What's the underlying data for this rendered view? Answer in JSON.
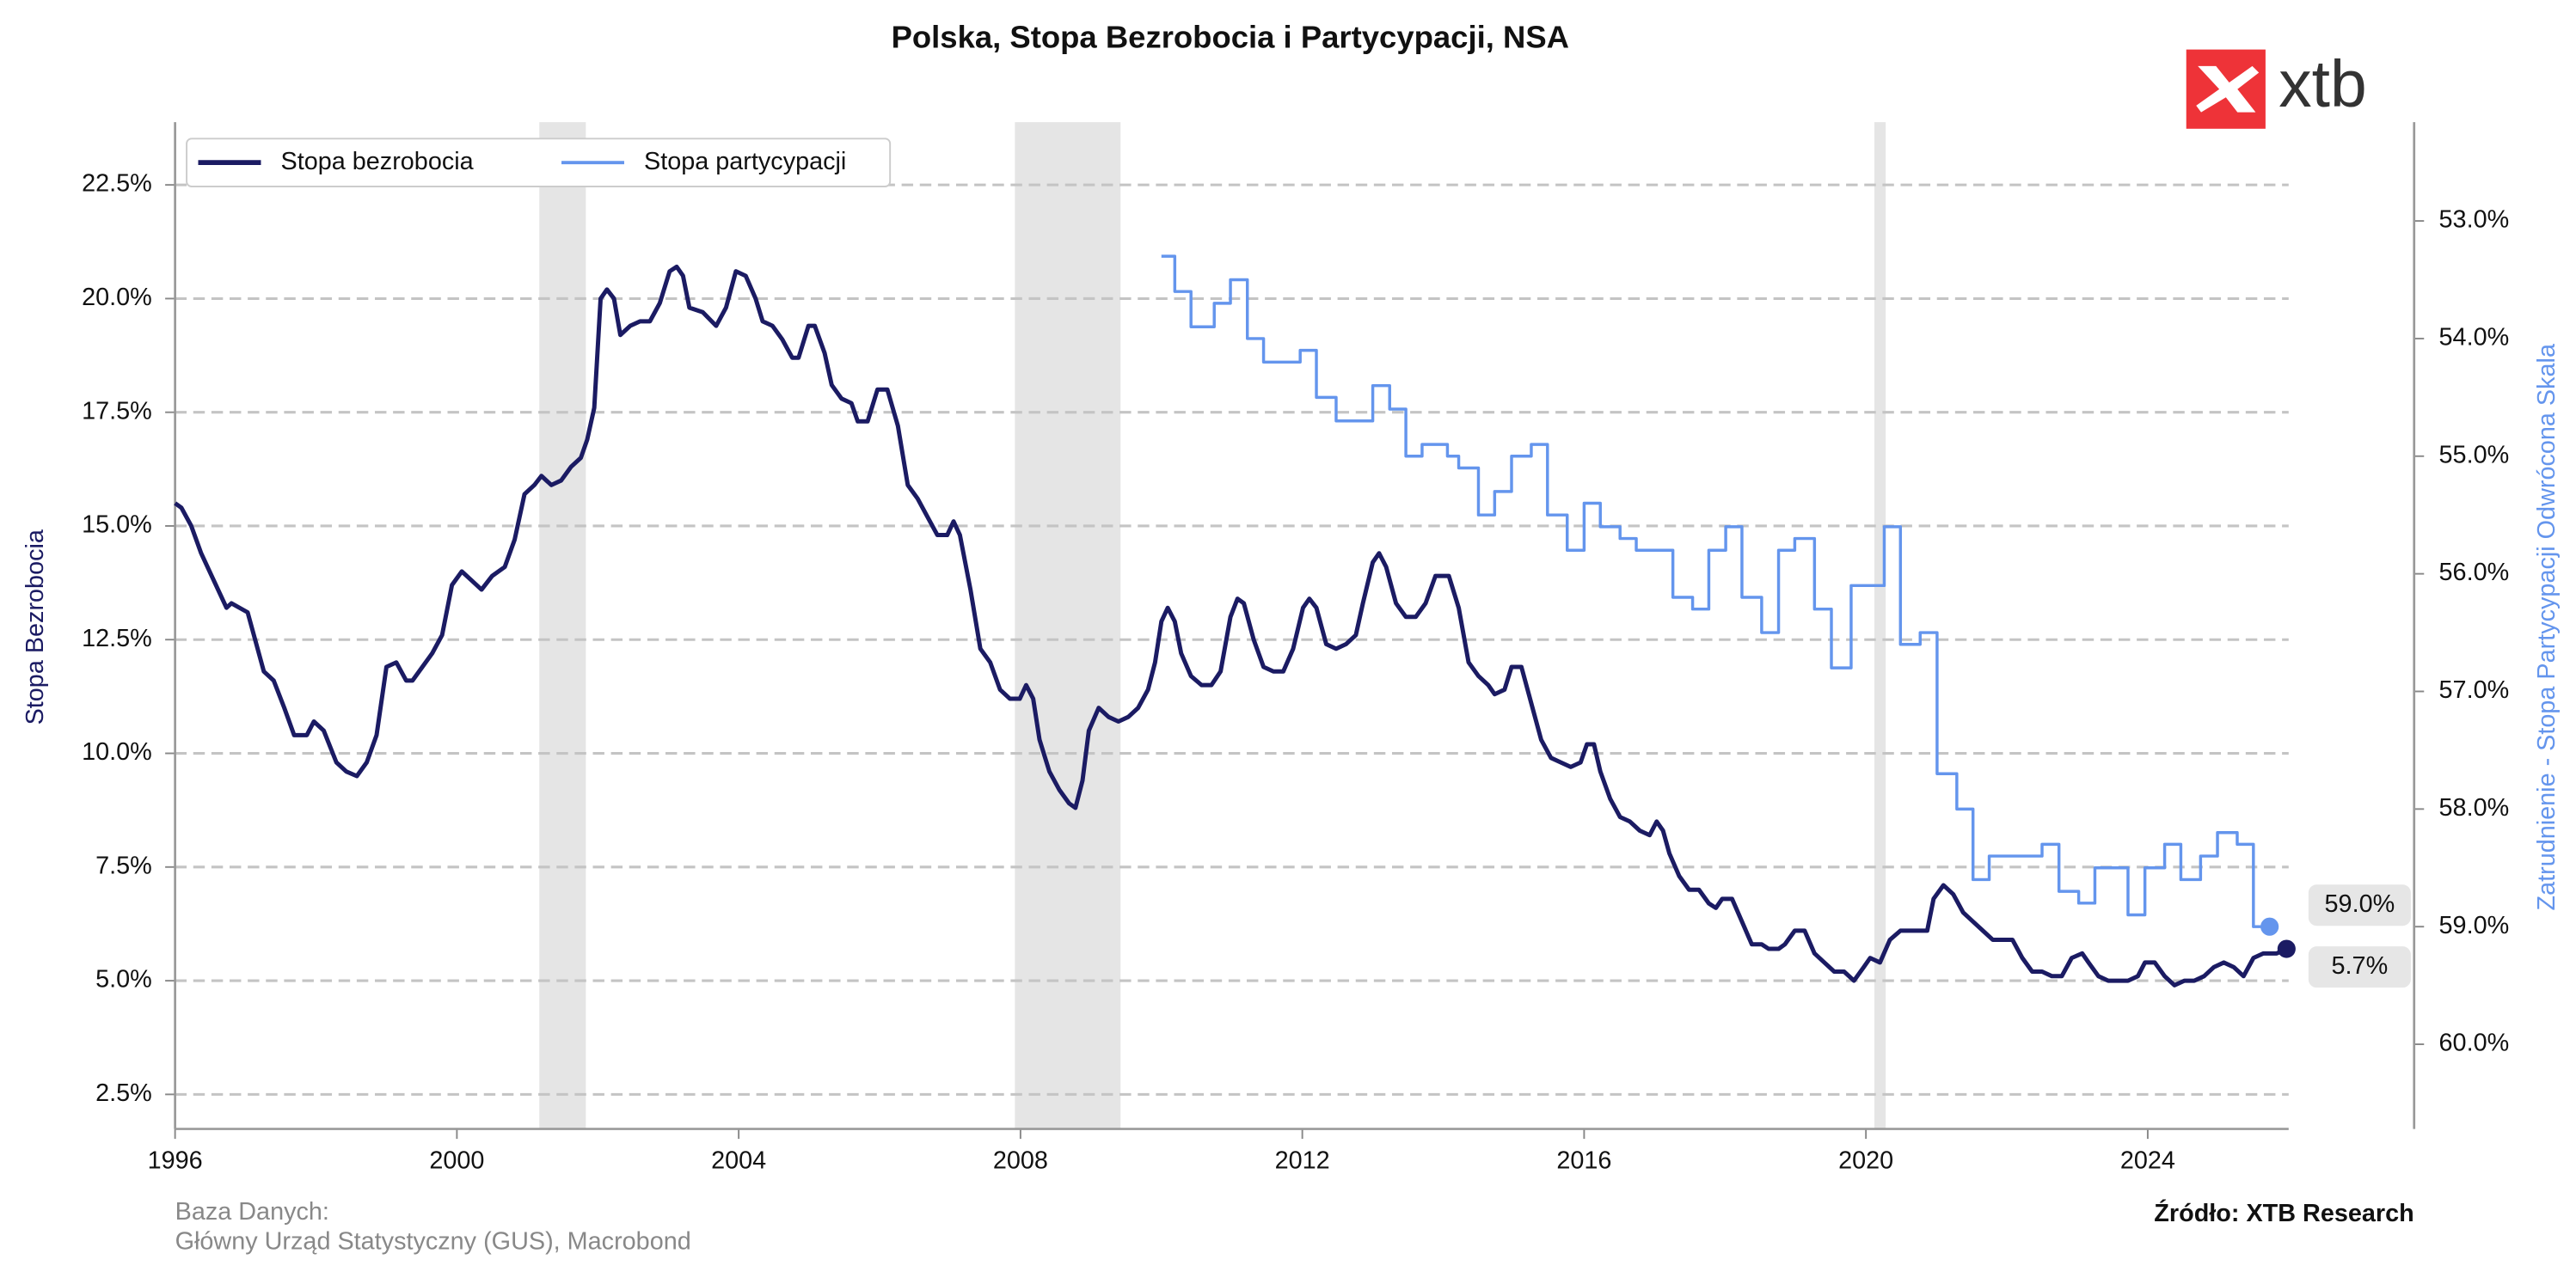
{
  "chart_data": {
    "type": "line",
    "title": "Polska, Stopa Bezrobocia i Partycypacji, NSA",
    "ylabel": "Stopa Bezrobocia",
    "y2label": "Zatrudnienie - Stopa Partycypacji Odwrócona Skala",
    "note_title": "Baza Danych:",
    "note_text": "Główny Urząd Statystyczny (GUS), Macrobond",
    "source": "Źródło: XTB Research",
    "logo": "xtb",
    "xlim": [
      1996,
      2026
    ],
    "xticks": [
      1996,
      2000,
      2004,
      2008,
      2012,
      2016,
      2020,
      2024
    ],
    "ylim": [
      1.74,
      23.88
    ],
    "yticks": [
      {
        "value": 2.5,
        "label": "2.5%"
      },
      {
        "value": 5,
        "label": "5.0%"
      },
      {
        "value": 7.5,
        "label": "7.5%"
      },
      {
        "value": 10,
        "label": "10.0%"
      },
      {
        "value": 12.5,
        "label": "12.5%"
      },
      {
        "value": 15,
        "label": "15.0%"
      },
      {
        "value": 17.5,
        "label": "17.5%"
      },
      {
        "value": 20,
        "label": "20.0%"
      },
      {
        "value": 22.5,
        "label": "22.5%"
      }
    ],
    "y2lim": [
      52.16,
      60.72
    ],
    "y2_inverted": true,
    "y2ticks": [
      {
        "value": 53,
        "label": "53.0%"
      },
      {
        "value": 54,
        "label": "54.0%"
      },
      {
        "value": 55,
        "label": "55.0%"
      },
      {
        "value": 56,
        "label": "56.0%"
      },
      {
        "value": 57,
        "label": "57.0%"
      },
      {
        "value": 58,
        "label": "58.0%"
      },
      {
        "value": 59,
        "label": "59.0%"
      },
      {
        "value": 60,
        "label": "60.0%"
      }
    ],
    "grid": true,
    "legend": "upper left",
    "shaded_regions": [
      [
        2001.17,
        2001.83
      ],
      [
        2007.92,
        2009.42
      ],
      [
        2020.12,
        2020.28
      ]
    ],
    "series": [
      {
        "name": "Stopa bezrobocia",
        "color": "#1b1b63",
        "axis": "y",
        "end_label": "5.7%",
        "x": [
          1996.0,
          1996.09,
          1996.23,
          1996.37,
          1996.52,
          1996.73,
          1996.8,
          1997.03,
          1997.26,
          1997.4,
          1997.55,
          1997.69,
          1997.87,
          1997.97,
          1998.11,
          1998.29,
          1998.43,
          1998.58,
          1998.72,
          1998.86,
          1999.0,
          1999.14,
          1999.28,
          1999.37,
          1999.51,
          1999.65,
          1999.79,
          1999.93,
          2000.07,
          2000.21,
          2000.35,
          2000.5,
          2000.68,
          2000.82,
          2000.96,
          2001.1,
          2001.2,
          2001.34,
          2001.48,
          2001.62,
          2001.76,
          2001.85,
          2001.95,
          2002.04,
          2002.13,
          2002.23,
          2002.32,
          2002.46,
          2002.6,
          2002.74,
          2002.88,
          2003.02,
          2003.12,
          2003.21,
          2003.3,
          2003.49,
          2003.68,
          2003.82,
          2003.96,
          2004.1,
          2004.24,
          2004.34,
          2004.48,
          2004.62,
          2004.76,
          2004.85,
          2004.99,
          2005.08,
          2005.22,
          2005.32,
          2005.46,
          2005.6,
          2005.69,
          2005.83,
          2005.97,
          2006.11,
          2006.26,
          2006.4,
          2006.54,
          2006.68,
          2006.82,
          2006.96,
          2007.05,
          2007.14,
          2007.29,
          2007.43,
          2007.57,
          2007.71,
          2007.85,
          2007.99,
          2008.08,
          2008.18,
          2008.27,
          2008.41,
          2008.55,
          2008.69,
          2008.78,
          2008.88,
          2008.97,
          2009.11,
          2009.25,
          2009.39,
          2009.53,
          2009.67,
          2009.81,
          2009.91,
          2010.0,
          2010.09,
          2010.19,
          2010.28,
          2010.42,
          2010.57,
          2010.71,
          2010.84,
          2010.98,
          2011.08,
          2011.17,
          2011.31,
          2011.45,
          2011.59,
          2011.73,
          2011.87,
          2012.01,
          2012.1,
          2012.2,
          2012.34,
          2012.48,
          2012.62,
          2012.76,
          2012.86,
          2013.0,
          2013.09,
          2013.19,
          2013.33,
          2013.47,
          2013.61,
          2013.75,
          2013.89,
          2014.08,
          2014.22,
          2014.36,
          2014.5,
          2014.64,
          2014.73,
          2014.87,
          2014.97,
          2015.11,
          2015.25,
          2015.39,
          2015.53,
          2015.67,
          2015.81,
          2015.95,
          2016.04,
          2016.14,
          2016.23,
          2016.37,
          2016.51,
          2016.65,
          2016.79,
          2016.93,
          2017.03,
          2017.12,
          2017.21,
          2017.35,
          2017.49,
          2017.63,
          2017.77,
          2017.87,
          2017.96,
          2018.1,
          2018.24,
          2018.38,
          2018.52,
          2018.62,
          2018.76,
          2018.85,
          2018.99,
          2019.13,
          2019.27,
          2019.41,
          2019.55,
          2019.69,
          2019.83,
          2019.97,
          2020.06,
          2020.2,
          2020.34,
          2020.49,
          2020.68,
          2020.87,
          2020.96,
          2021.1,
          2021.24,
          2021.38,
          2021.52,
          2021.66,
          2021.8,
          2021.94,
          2022.08,
          2022.22,
          2022.36,
          2022.5,
          2022.64,
          2022.78,
          2022.92,
          2023.07,
          2023.16,
          2023.3,
          2023.44,
          2023.58,
          2023.72,
          2023.86,
          2023.96,
          2024.1,
          2024.24,
          2024.38,
          2024.52,
          2024.66,
          2024.8,
          2024.94,
          2025.08,
          2025.22,
          2025.36,
          2025.5,
          2025.64,
          2025.83,
          2025.97
        ],
        "values": [
          15.5,
          15.4,
          15.0,
          14.4,
          13.9,
          13.2,
          13.3,
          13.1,
          11.8,
          11.6,
          11.0,
          10.4,
          10.4,
          10.7,
          10.5,
          9.8,
          9.6,
          9.5,
          9.8,
          10.4,
          11.9,
          12.0,
          11.6,
          11.6,
          11.9,
          12.2,
          12.6,
          13.7,
          14.0,
          13.8,
          13.6,
          13.9,
          14.1,
          14.7,
          15.7,
          15.9,
          16.1,
          15.9,
          16.0,
          16.3,
          16.5,
          16.9,
          17.6,
          20.0,
          20.2,
          20.0,
          19.2,
          19.4,
          19.5,
          19.5,
          19.9,
          20.6,
          20.7,
          20.5,
          19.8,
          19.7,
          19.4,
          19.8,
          20.6,
          20.5,
          20.0,
          19.5,
          19.4,
          19.1,
          18.7,
          18.7,
          19.4,
          19.4,
          18.8,
          18.1,
          17.8,
          17.7,
          17.3,
          17.3,
          18.0,
          18.0,
          17.2,
          15.9,
          15.6,
          15.2,
          14.8,
          14.8,
          15.1,
          14.8,
          13.6,
          12.3,
          12.0,
          11.4,
          11.2,
          11.2,
          11.5,
          11.2,
          10.3,
          9.6,
          9.2,
          8.9,
          8.8,
          9.4,
          10.5,
          11.0,
          10.8,
          10.7,
          10.8,
          11.0,
          11.4,
          12.0,
          12.9,
          13.2,
          12.9,
          12.2,
          11.7,
          11.5,
          11.5,
          11.8,
          13.0,
          13.4,
          13.3,
          12.5,
          11.9,
          11.8,
          11.8,
          12.3,
          13.2,
          13.4,
          13.2,
          12.4,
          12.3,
          12.4,
          12.6,
          13.3,
          14.2,
          14.4,
          14.1,
          13.3,
          13.0,
          13.0,
          13.3,
          13.9,
          13.9,
          13.2,
          12.0,
          11.7,
          11.5,
          11.3,
          11.4,
          11.9,
          11.9,
          11.1,
          10.3,
          9.9,
          9.8,
          9.7,
          9.8,
          10.2,
          10.2,
          9.6,
          9.0,
          8.6,
          8.5,
          8.3,
          8.2,
          8.5,
          8.3,
          7.8,
          7.3,
          7.0,
          7.0,
          6.7,
          6.6,
          6.8,
          6.8,
          6.3,
          5.8,
          5.8,
          5.7,
          5.7,
          5.8,
          6.1,
          6.1,
          5.6,
          5.4,
          5.2,
          5.2,
          5.0,
          5.3,
          5.5,
          5.4,
          5.9,
          6.1,
          6.1,
          6.1,
          6.8,
          7.1,
          6.9,
          6.5,
          6.3,
          6.1,
          5.9,
          5.9,
          5.9,
          5.5,
          5.2,
          5.2,
          5.1,
          5.1,
          5.5,
          5.6,
          5.4,
          5.1,
          5.0,
          5.0,
          5.0,
          5.1,
          5.4,
          5.4,
          5.1,
          4.9,
          5.0,
          5.0,
          5.1,
          5.3,
          5.4,
          5.3,
          5.1,
          5.5,
          5.6,
          5.6,
          5.7
        ]
      },
      {
        "name": "Stopa partycypacji",
        "color": "#6495ed",
        "axis": "y2",
        "drawstyle": "steps-post",
        "end_label": "59.0%",
        "x": [
          2010.0,
          2010.19,
          2010.42,
          2010.75,
          2010.98,
          2011.22,
          2011.45,
          2011.97,
          2012.2,
          2012.48,
          2013.0,
          2013.24,
          2013.47,
          2013.7,
          2014.06,
          2014.22,
          2014.5,
          2014.73,
          2014.97,
          2015.25,
          2015.48,
          2015.76,
          2016.0,
          2016.23,
          2016.51,
          2016.74,
          2017.26,
          2017.54,
          2017.77,
          2018.01,
          2018.24,
          2018.52,
          2018.76,
          2018.99,
          2019.27,
          2019.51,
          2019.79,
          2020.26,
          2020.49,
          2020.77,
          2021.01,
          2021.29,
          2021.52,
          2021.75,
          2022.5,
          2022.74,
          2023.02,
          2023.25,
          2023.72,
          2023.96,
          2024.24,
          2024.47,
          2024.75,
          2024.99,
          2025.27,
          2025.5,
          2025.73
        ],
        "values": [
          53.3,
          53.6,
          53.9,
          53.7,
          53.5,
          54.0,
          54.2,
          54.1,
          54.5,
          54.7,
          54.4,
          54.6,
          55.0,
          54.9,
          55.0,
          55.1,
          55.5,
          55.3,
          55.0,
          54.9,
          55.5,
          55.8,
          55.4,
          55.6,
          55.7,
          55.8,
          56.2,
          56.3,
          55.8,
          55.6,
          56.2,
          56.5,
          55.8,
          55.7,
          56.3,
          56.8,
          56.1,
          55.6,
          56.6,
          56.5,
          57.7,
          58.0,
          58.6,
          58.4,
          58.3,
          58.7,
          58.8,
          58.5,
          58.9,
          58.5,
          58.3,
          58.6,
          58.4,
          58.2,
          58.3,
          59.0,
          59.0
        ]
      }
    ]
  }
}
